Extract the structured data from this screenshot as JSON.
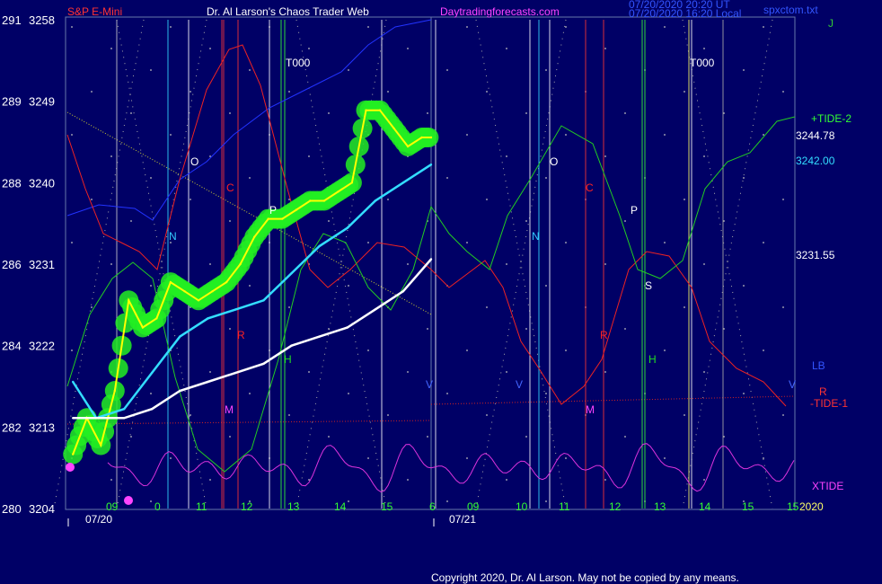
{
  "header": {
    "symbol": "S&P E-Mini",
    "title": "Dr. Al Larson's Chaos Trader Web",
    "site": "Daytradingforecasts.com",
    "timestamp1": "07/20/2020 20:20 UT",
    "timestamp2": "07/20/2020 16:20 Local",
    "filename": "spxctom.txt"
  },
  "footer": {
    "copyright": "Copyright 2020, Dr. Al Larson. May not be copied by any means."
  },
  "colors": {
    "background": "#000066",
    "grid_dots": "#c0c0c0",
    "price_yellow": "#ffff00",
    "ma_cyan": "#33ddff",
    "ma_white": "#ffffff",
    "blue_line": "#2233ff",
    "red_line": "#ee2222",
    "green_line": "#22cc22",
    "xtide_magenta": "#dd33dd",
    "glow_green": "#22ee22"
  },
  "chart_data": {
    "type": "line",
    "y_axis_left": {
      "labels_outer": [
        "291",
        "289",
        "288",
        "286",
        "284",
        "282",
        "280"
      ],
      "labels_inner": [
        "3258",
        "3249",
        "3240",
        "3231",
        "3222",
        "3213",
        "3204"
      ],
      "values": [
        3258,
        3249,
        3240,
        3231,
        3222,
        3213,
        3204
      ],
      "ylim": [
        3204,
        3258
      ]
    },
    "x_axis": {
      "hour_labels_day1": [
        "09",
        "0",
        "11",
        "12",
        "13",
        "14",
        "15",
        "6"
      ],
      "hour_labels_day2": [
        "09",
        "10",
        "11",
        "12",
        "13",
        "14",
        "15",
        "15"
      ],
      "date_labels": [
        "07/20",
        "07/21"
      ],
      "year_label": "2020"
    },
    "right_labels": {
      "j": "J",
      "tide_plus": "+TIDE-2",
      "price_a": "3244.78",
      "price_b": "3242.00",
      "price_c": "3231.55",
      "lb": "LB",
      "r": "R",
      "tide_minus": "-TIDE-1",
      "xtide": "XTIDE"
    },
    "annotations": [
      {
        "text": "T000",
        "color": "#ffffff"
      },
      {
        "text": "T000",
        "color": "#ffffff"
      },
      {
        "text": "O",
        "color": "#ffffff"
      },
      {
        "text": "O",
        "color": "#ffffff"
      },
      {
        "text": "C",
        "color": "#ff2222"
      },
      {
        "text": "C",
        "color": "#ff2222"
      },
      {
        "text": "P",
        "color": "#ffffff"
      },
      {
        "text": "P",
        "color": "#ffffff"
      },
      {
        "text": "N",
        "color": "#33ccff"
      },
      {
        "text": "N",
        "color": "#33ccff"
      },
      {
        "text": "R",
        "color": "#ff2222"
      },
      {
        "text": "R",
        "color": "#ff2222"
      },
      {
        "text": "M",
        "color": "#ff44ff"
      },
      {
        "text": "M",
        "color": "#ff44ff"
      },
      {
        "text": "H",
        "color": "#22dd22"
      },
      {
        "text": "H",
        "color": "#22dd22"
      },
      {
        "text": "S",
        "color": "#ffffff"
      },
      {
        "text": "V",
        "color": "#4466ff"
      },
      {
        "text": "V",
        "color": "#4466ff"
      },
      {
        "text": "V",
        "color": "#4466ff"
      }
    ],
    "series": [
      {
        "color": "#ffff00",
        "x": [
          "09:35",
          "09:50",
          "10:05",
          "10:20",
          "10:35",
          "10:50",
          "11:05",
          "11:20",
          "11:35",
          "11:50",
          "12:05",
          "12:20",
          "12:35",
          "12:50",
          "13:05",
          "13:20",
          "13:35",
          "13:50",
          "14:05",
          "14:20",
          "14:35",
          "14:50",
          "15:05",
          "15:20",
          "15:35",
          "15:50",
          "16:00"
        ],
        "values": [
          3210,
          3214,
          3211,
          3217,
          3227,
          3224,
          3225,
          3229,
          3228,
          3227,
          3228,
          3229,
          3231,
          3234,
          3236,
          3236,
          3237,
          3238,
          3238,
          3239,
          3240,
          3248,
          3248,
          3246,
          3244,
          3245,
          3245
        ]
      },
      {
        "color": "#33ddff",
        "x": [
          "09:35",
          "10:00",
          "10:30",
          "11:00",
          "11:30",
          "12:00",
          "12:30",
          "13:00",
          "13:30",
          "14:00",
          "14:30",
          "15:00",
          "15:30",
          "16:00"
        ],
        "values": [
          3218,
          3214,
          3215,
          3219,
          3223,
          3225,
          3226,
          3227,
          3230,
          3233,
          3235,
          3238,
          3240,
          3242
        ]
      },
      {
        "color": "#ffffff",
        "x": [
          "09:35",
          "10:00",
          "10:30",
          "11:00",
          "11:30",
          "12:00",
          "12:30",
          "13:00",
          "13:30",
          "14:00",
          "14:30",
          "15:00",
          "15:30",
          "16:00"
        ],
        "values": [
          3214,
          3214,
          3214,
          3215,
          3217,
          3218,
          3219,
          3220,
          3222,
          3223,
          3224,
          3226,
          3228,
          3231.55
        ]
      }
    ]
  }
}
